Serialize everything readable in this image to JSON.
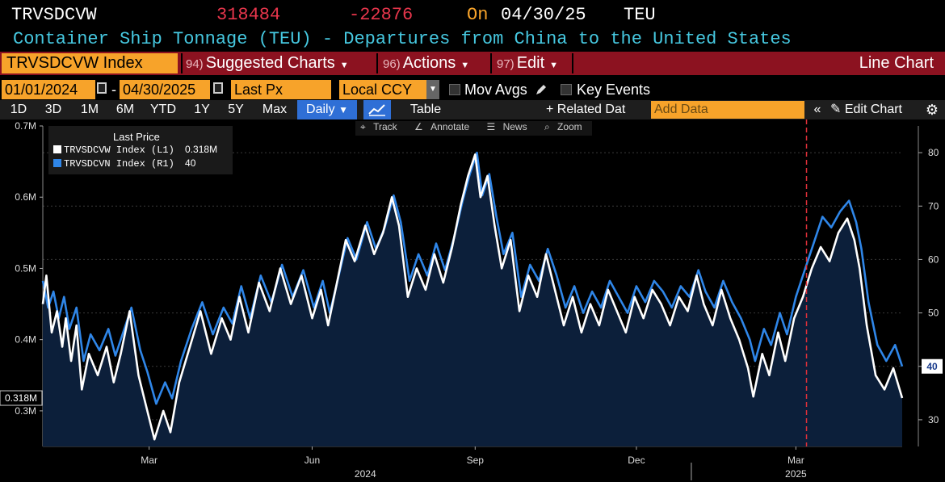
{
  "header": {
    "ticker": "TRVSDCVW",
    "last_value": "318484",
    "change": "-22876",
    "on_label": "On",
    "date": "04/30/25",
    "unit": "TEU",
    "title": "Container Ship Tonnage (TEU) - Departures from China to the United States"
  },
  "menu": {
    "security": "TRVSDCVW Index",
    "items": [
      {
        "num": "94)",
        "label": "Suggested Charts"
      },
      {
        "num": "96)",
        "label": "Actions"
      },
      {
        "num": "97)",
        "label": "Edit"
      }
    ],
    "chart_type": "Line Chart"
  },
  "controls": {
    "start_date": "01/01/2024",
    "dash": "-",
    "end_date": "04/30/2025",
    "field": "Last Px",
    "currency": "Local CCY",
    "mov_avgs": "Mov Avgs",
    "key_events": "Key Events"
  },
  "toolbar": {
    "periods": [
      "1D",
      "3D",
      "1M",
      "6M",
      "YTD",
      "1Y",
      "5Y",
      "Max"
    ],
    "frequency": "Daily",
    "table": "Table",
    "related_data": "Related Dat",
    "add_data_placeholder": "Add Data",
    "edit_chart": "Edit Chart"
  },
  "chart_tools": [
    "Track",
    "Annotate",
    "News",
    "Zoom"
  ],
  "colors": {
    "white_series": "#ffffff",
    "blue_series": "#2f86e8",
    "area_fill": "#0c1f3a",
    "event_line": "#e0303a",
    "header_red": "#8c1220",
    "accent_orange": "#f7a32a"
  },
  "chart_data": {
    "type": "line",
    "title": "Container Ship Tonnage (TEU) - Departures from China to the United States",
    "legend_title": "Last Price",
    "x_tick_labels": [
      "Mar",
      "Jun",
      "Sep",
      "Dec",
      "Mar"
    ],
    "year_labels": [
      "2024",
      "2025"
    ],
    "left_axis": {
      "ticks": [
        "0.3M",
        "0.4M",
        "0.5M",
        "0.6M",
        "0.7M"
      ],
      "range": [
        0.25,
        0.7
      ],
      "last_label": "0.318M"
    },
    "right_axis": {
      "ticks": [
        "30",
        "40",
        "50",
        "60",
        "70",
        "80"
      ],
      "range": [
        25,
        85
      ],
      "last_label": "40"
    },
    "event_marker_date": "2025-03-07",
    "series": [
      {
        "name": "TRVSDCVW Index",
        "axis": "L1",
        "last": "0.318M",
        "color": "#ffffff",
        "points": [
          [
            "2024-01-01",
            0.45
          ],
          [
            "2024-01-03",
            0.49
          ],
          [
            "2024-01-06",
            0.41
          ],
          [
            "2024-01-09",
            0.44
          ],
          [
            "2024-01-12",
            0.39
          ],
          [
            "2024-01-14",
            0.43
          ],
          [
            "2024-01-17",
            0.37
          ],
          [
            "2024-01-20",
            0.42
          ],
          [
            "2024-01-23",
            0.33
          ],
          [
            "2024-01-27",
            0.38
          ],
          [
            "2024-02-01",
            0.35
          ],
          [
            "2024-02-06",
            0.39
          ],
          [
            "2024-02-10",
            0.34
          ],
          [
            "2024-02-14",
            0.38
          ],
          [
            "2024-02-19",
            0.44
          ],
          [
            "2024-02-24",
            0.35
          ],
          [
            "2024-02-28",
            0.31
          ],
          [
            "2024-03-04",
            0.26
          ],
          [
            "2024-03-09",
            0.3
          ],
          [
            "2024-03-13",
            0.27
          ],
          [
            "2024-03-18",
            0.34
          ],
          [
            "2024-03-24",
            0.39
          ],
          [
            "2024-03-30",
            0.44
          ],
          [
            "2024-04-05",
            0.38
          ],
          [
            "2024-04-11",
            0.43
          ],
          [
            "2024-04-16",
            0.4
          ],
          [
            "2024-04-21",
            0.46
          ],
          [
            "2024-04-26",
            0.41
          ],
          [
            "2024-05-02",
            0.48
          ],
          [
            "2024-05-08",
            0.44
          ],
          [
            "2024-05-14",
            0.5
          ],
          [
            "2024-05-20",
            0.45
          ],
          [
            "2024-05-26",
            0.49
          ],
          [
            "2024-06-01",
            0.43
          ],
          [
            "2024-06-06",
            0.47
          ],
          [
            "2024-06-10",
            0.42
          ],
          [
            "2024-06-15",
            0.48
          ],
          [
            "2024-06-20",
            0.54
          ],
          [
            "2024-06-25",
            0.51
          ],
          [
            "2024-07-01",
            0.56
          ],
          [
            "2024-07-06",
            0.52
          ],
          [
            "2024-07-11",
            0.55
          ],
          [
            "2024-07-16",
            0.6
          ],
          [
            "2024-07-20",
            0.56
          ],
          [
            "2024-07-25",
            0.46
          ],
          [
            "2024-07-30",
            0.5
          ],
          [
            "2024-08-04",
            0.47
          ],
          [
            "2024-08-09",
            0.52
          ],
          [
            "2024-08-14",
            0.48
          ],
          [
            "2024-08-19",
            0.53
          ],
          [
            "2024-08-24",
            0.59
          ],
          [
            "2024-08-28",
            0.63
          ],
          [
            "2024-09-01",
            0.66
          ],
          [
            "2024-09-04",
            0.6
          ],
          [
            "2024-09-08",
            0.63
          ],
          [
            "2024-09-12",
            0.56
          ],
          [
            "2024-09-16",
            0.5
          ],
          [
            "2024-09-21",
            0.54
          ],
          [
            "2024-09-26",
            0.44
          ],
          [
            "2024-10-01",
            0.49
          ],
          [
            "2024-10-06",
            0.46
          ],
          [
            "2024-10-11",
            0.52
          ],
          [
            "2024-10-16",
            0.47
          ],
          [
            "2024-10-21",
            0.42
          ],
          [
            "2024-10-26",
            0.46
          ],
          [
            "2024-10-31",
            0.41
          ],
          [
            "2024-11-05",
            0.45
          ],
          [
            "2024-11-10",
            0.42
          ],
          [
            "2024-11-15",
            0.47
          ],
          [
            "2024-11-20",
            0.44
          ],
          [
            "2024-11-25",
            0.41
          ],
          [
            "2024-11-30",
            0.46
          ],
          [
            "2024-12-05",
            0.43
          ],
          [
            "2024-12-10",
            0.47
          ],
          [
            "2024-12-15",
            0.45
          ],
          [
            "2024-12-20",
            0.42
          ],
          [
            "2024-12-25",
            0.46
          ],
          [
            "2024-12-30",
            0.44
          ],
          [
            "2025-01-04",
            0.49
          ],
          [
            "2025-01-08",
            0.45
          ],
          [
            "2025-01-13",
            0.42
          ],
          [
            "2025-01-18",
            0.47
          ],
          [
            "2025-01-23",
            0.43
          ],
          [
            "2025-01-28",
            0.4
          ],
          [
            "2025-02-02",
            0.36
          ],
          [
            "2025-02-05",
            0.32
          ],
          [
            "2025-02-10",
            0.38
          ],
          [
            "2025-02-14",
            0.35
          ],
          [
            "2025-02-19",
            0.41
          ],
          [
            "2025-02-23",
            0.37
          ],
          [
            "2025-02-28",
            0.43
          ],
          [
            "2025-03-05",
            0.46
          ],
          [
            "2025-03-10",
            0.5
          ],
          [
            "2025-03-15",
            0.53
          ],
          [
            "2025-03-20",
            0.51
          ],
          [
            "2025-03-25",
            0.55
          ],
          [
            "2025-03-30",
            0.57
          ],
          [
            "2025-04-03",
            0.54
          ],
          [
            "2025-04-06",
            0.5
          ],
          [
            "2025-04-10",
            0.42
          ],
          [
            "2025-04-15",
            0.35
          ],
          [
            "2025-04-20",
            0.33
          ],
          [
            "2025-04-25",
            0.36
          ],
          [
            "2025-04-30",
            0.318
          ]
        ]
      },
      {
        "name": "TRVSDCVN Index",
        "axis": "R1",
        "last": "40",
        "color": "#2f86e8",
        "points": [
          [
            "2024-01-01",
            56
          ],
          [
            "2024-01-04",
            51
          ],
          [
            "2024-01-07",
            54
          ],
          [
            "2024-01-10",
            49
          ],
          [
            "2024-01-13",
            53
          ],
          [
            "2024-01-16",
            47
          ],
          [
            "2024-01-20",
            51
          ],
          [
            "2024-01-24",
            41
          ],
          [
            "2024-01-28",
            46
          ],
          [
            "2024-02-02",
            43
          ],
          [
            "2024-02-07",
            47
          ],
          [
            "2024-02-11",
            42
          ],
          [
            "2024-02-15",
            46
          ],
          [
            "2024-02-20",
            51
          ],
          [
            "2024-02-25",
            43
          ],
          [
            "2024-02-29",
            39
          ],
          [
            "2024-03-05",
            33
          ],
          [
            "2024-03-10",
            37
          ],
          [
            "2024-03-14",
            34
          ],
          [
            "2024-03-19",
            41
          ],
          [
            "2024-03-25",
            47
          ],
          [
            "2024-03-31",
            52
          ],
          [
            "2024-04-06",
            46
          ],
          [
            "2024-04-12",
            51
          ],
          [
            "2024-04-17",
            48
          ],
          [
            "2024-04-22",
            55
          ],
          [
            "2024-04-27",
            49
          ],
          [
            "2024-05-03",
            57
          ],
          [
            "2024-05-09",
            52
          ],
          [
            "2024-05-15",
            59
          ],
          [
            "2024-05-21",
            53
          ],
          [
            "2024-05-27",
            58
          ],
          [
            "2024-06-02",
            51
          ],
          [
            "2024-06-07",
            56
          ],
          [
            "2024-06-11",
            50
          ],
          [
            "2024-06-16",
            57
          ],
          [
            "2024-06-21",
            64
          ],
          [
            "2024-06-26",
            60
          ],
          [
            "2024-07-02",
            67
          ],
          [
            "2024-07-07",
            62
          ],
          [
            "2024-07-12",
            66
          ],
          [
            "2024-07-17",
            72
          ],
          [
            "2024-07-21",
            67
          ],
          [
            "2024-07-26",
            56
          ],
          [
            "2024-07-31",
            61
          ],
          [
            "2024-08-05",
            57
          ],
          [
            "2024-08-10",
            63
          ],
          [
            "2024-08-15",
            58
          ],
          [
            "2024-08-20",
            64
          ],
          [
            "2024-08-25",
            71
          ],
          [
            "2024-08-29",
            76
          ],
          [
            "2024-09-02",
            80
          ],
          [
            "2024-09-05",
            72
          ],
          [
            "2024-09-09",
            76
          ],
          [
            "2024-09-13",
            68
          ],
          [
            "2024-09-17",
            61
          ],
          [
            "2024-09-22",
            65
          ],
          [
            "2024-09-27",
            53
          ],
          [
            "2024-10-02",
            59
          ],
          [
            "2024-10-07",
            56
          ],
          [
            "2024-10-12",
            62
          ],
          [
            "2024-10-17",
            57
          ],
          [
            "2024-10-22",
            51
          ],
          [
            "2024-10-27",
            55
          ],
          [
            "2024-11-01",
            50
          ],
          [
            "2024-11-06",
            54
          ],
          [
            "2024-11-11",
            51
          ],
          [
            "2024-11-16",
            56
          ],
          [
            "2024-11-21",
            53
          ],
          [
            "2024-11-26",
            50
          ],
          [
            "2024-12-01",
            55
          ],
          [
            "2024-12-06",
            52
          ],
          [
            "2024-12-11",
            56
          ],
          [
            "2024-12-16",
            54
          ],
          [
            "2024-12-21",
            51
          ],
          [
            "2024-12-26",
            55
          ],
          [
            "2024-12-31",
            53
          ],
          [
            "2025-01-05",
            58
          ],
          [
            "2025-01-09",
            54
          ],
          [
            "2025-01-14",
            51
          ],
          [
            "2025-01-19",
            56
          ],
          [
            "2025-01-24",
            52
          ],
          [
            "2025-01-29",
            49
          ],
          [
            "2025-02-03",
            45
          ],
          [
            "2025-02-06",
            41
          ],
          [
            "2025-02-11",
            47
          ],
          [
            "2025-02-15",
            44
          ],
          [
            "2025-02-20",
            50
          ],
          [
            "2025-02-24",
            46
          ],
          [
            "2025-03-01",
            53
          ],
          [
            "2025-03-06",
            58
          ],
          [
            "2025-03-11",
            63
          ],
          [
            "2025-03-16",
            68
          ],
          [
            "2025-03-21",
            66
          ],
          [
            "2025-03-26",
            69
          ],
          [
            "2025-03-31",
            71
          ],
          [
            "2025-04-04",
            67
          ],
          [
            "2025-04-07",
            62
          ],
          [
            "2025-04-11",
            52
          ],
          [
            "2025-04-16",
            44
          ],
          [
            "2025-04-21",
            41
          ],
          [
            "2025-04-26",
            44
          ],
          [
            "2025-04-30",
            40
          ]
        ]
      }
    ]
  }
}
